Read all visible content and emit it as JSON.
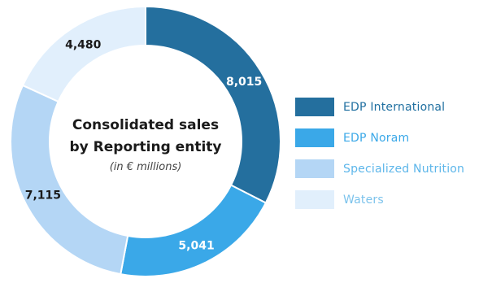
{
  "chart_data": {
    "type": "pie",
    "style": "donut",
    "title": "Consolidated sales",
    "title_line2": "by Reporting entity",
    "subtitle": "(in € millions)",
    "categories": [
      "EDP International",
      "EDP Noram",
      "Specialized Nutrition",
      "Waters"
    ],
    "values": [
      8015,
      5041,
      7115,
      4480
    ],
    "value_labels": [
      "8,015",
      "5,041",
      "7,115",
      "4,480"
    ],
    "colors": [
      "#246f9e",
      "#3aa8e8",
      "#b4d6f5",
      "#e1effc"
    ],
    "label_colors": [
      "#ffffff",
      "#ffffff",
      "#1a1a1a",
      "#1a1a1a"
    ],
    "legend_text_colors": [
      "#1f6fa0",
      "#3aa8e8",
      "#5db6ea",
      "#7cc3ec"
    ],
    "legend_position": "right",
    "start_angle": "top",
    "direction": "clockwise"
  }
}
